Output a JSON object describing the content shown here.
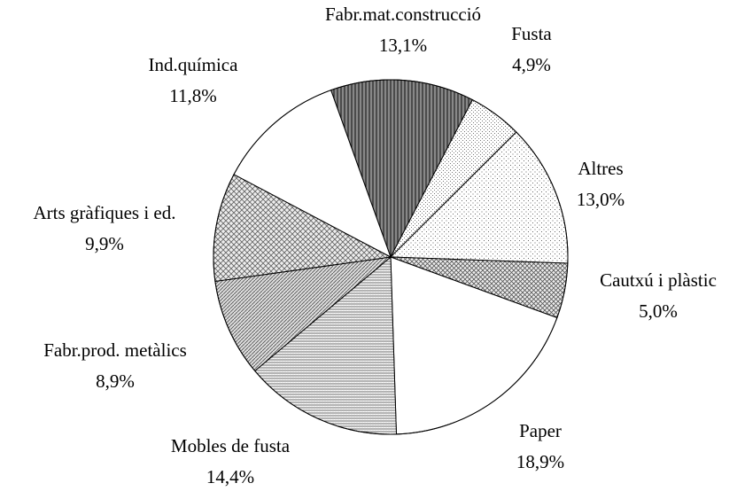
{
  "chart_data": {
    "type": "pie",
    "categories": [
      "Fabr.mat.construcció",
      "Fusta",
      "Altres",
      "Cautxú i plàstic",
      "Paper",
      "Mobles de fusta",
      "Fabr.prod. metàlics",
      "Arts gràfiques i ed.",
      "Ind.química"
    ],
    "values": [
      13.1,
      4.9,
      13.0,
      5.0,
      18.9,
      14.4,
      8.9,
      9.9,
      11.8
    ],
    "value_labels": [
      "13,1%",
      "4,9%",
      "13,0%",
      "5,0%",
      "18,9%",
      "14,4%",
      "8,9%",
      "9,9%",
      "11,8%"
    ]
  }
}
